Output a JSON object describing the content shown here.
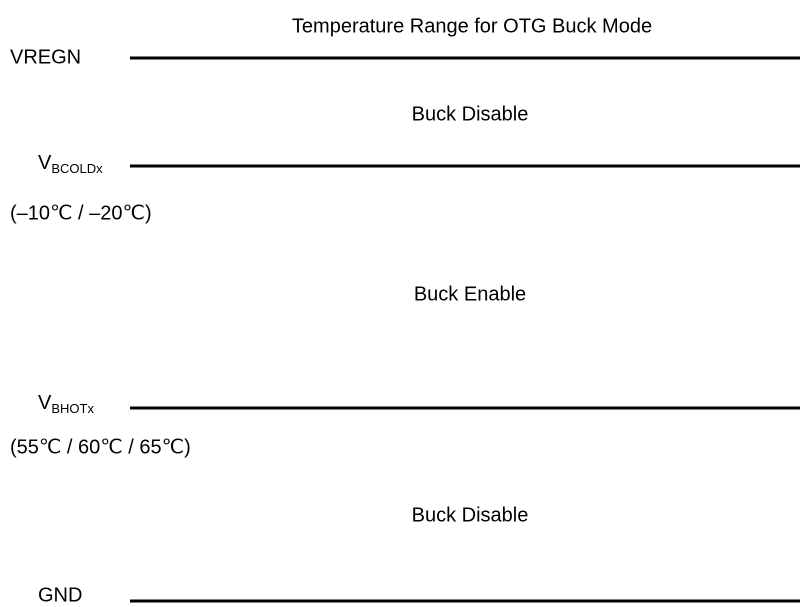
{
  "title": "Temperature Range for OTG Buck Mode",
  "levels": [
    {
      "label": "VREGN"
    },
    {
      "label": "V",
      "subscript": "BCOLDx",
      "note": "(–10℃ / –20℃)"
    },
    {
      "label": "V",
      "subscript": "BHOTx",
      "note": "(55℃ / 60℃ / 65℃)"
    },
    {
      "label": "GND"
    }
  ],
  "regions": [
    "Buck Disable",
    "Buck Enable",
    "Buck Disable"
  ]
}
